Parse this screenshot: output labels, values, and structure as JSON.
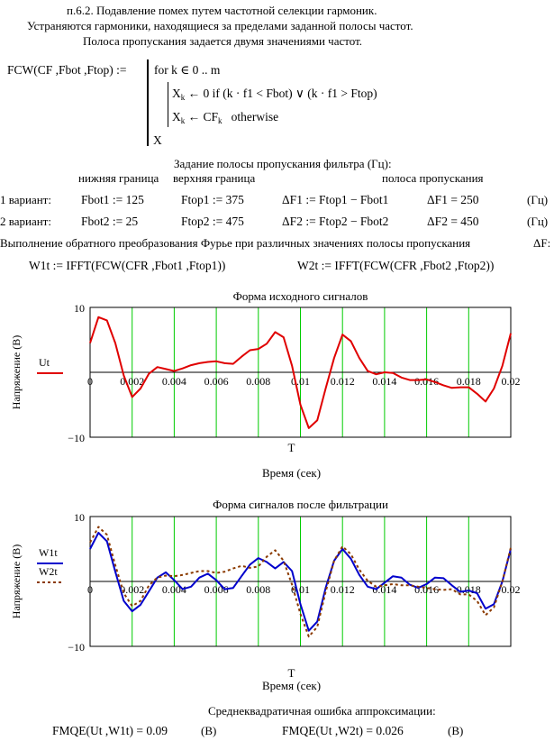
{
  "header": {
    "line1": "п.6.2. Подавление помех путем частотной селекции гармоник.",
    "line2": "Устраняются гармоники, находящиеся за пределами заданной полосы частот.",
    "line3": "Полоса пропускания задается двумя значениями частот."
  },
  "program": {
    "signature": "FCW(CF ,Fbot ,Ftop) :=",
    "for_line": "for  k ∈ 0 .. m",
    "line_a_lhs": "X",
    "line_a_rhs": "← 0   if  (k · f1 < Fbot) ∨ (k · f1 > Ftop)",
    "line_b_lhs": "X",
    "line_b_rhs": "← CF",
    "line_b_sub": "k",
    "line_b_tail": "otherwise",
    "ret": "X",
    "sub_k": "k"
  },
  "band": {
    "title": "Задание полосы пропускания фильтра (Гц):",
    "col_low": "нижняя граница",
    "col_high": "верхняя граница",
    "col_pass": "полоса пропускания",
    "rows": [
      {
        "variant": "1 вариант:",
        "low": "Fbot1 := 125",
        "high": "Ftop1 := 375",
        "def": "ΔF1 := Ftop1 − Fbot1",
        "val": "ΔF1 = 250",
        "unit": "(Гц)"
      },
      {
        "variant": "2 вариант:",
        "low": "Fbot2 := 25",
        "high": "Ftop2 := 475",
        "def": "ΔF2 := Ftop2 − Fbot2",
        "val": "ΔF2 = 450",
        "unit": "(Гц)"
      }
    ],
    "inverse_note": "Выполнение обратного преобразования Фурье при различных значениях полосы пропускания",
    "inverse_tail": "ΔF:",
    "w1": "W1t := IFFT(FCW(CFR ,Fbot1 ,Ftop1))",
    "w2": "W2t := IFFT(FCW(CFR ,Fbot2 ,Ftop2))"
  },
  "chart_data": [
    {
      "type": "line",
      "title": "Форма исходного сигналов",
      "xlabel": "T",
      "xlabel2": "Время (сек)",
      "ylabel": "Напряжение (В)",
      "xlim": [
        0,
        0.02
      ],
      "ylim": [
        -10,
        10
      ],
      "xticks": [
        "0",
        "0.002",
        "0.004",
        "0.006",
        "0.008",
        "0.01",
        "0.012",
        "0.014",
        "0.016",
        "0.018",
        "0.02"
      ],
      "ytick_top": "10",
      "ytick_bottom": "−10",
      "grid": true,
      "legend": "left",
      "colors": {
        "grid": "#00cc00",
        "series": "#e00000"
      },
      "series": [
        {
          "name": "Ut",
          "style": "solid",
          "color": "#e00000",
          "x": [
            0,
            0.0004,
            0.0008,
            0.0012,
            0.0016,
            0.002,
            0.0024,
            0.0028,
            0.0032,
            0.0036,
            0.004,
            0.0044,
            0.0048,
            0.0052,
            0.0056,
            0.006,
            0.0064,
            0.0068,
            0.0072,
            0.0076,
            0.008,
            0.0084,
            0.0088,
            0.0092,
            0.0096,
            0.01,
            0.0104,
            0.0108,
            0.0112,
            0.0116,
            0.012,
            0.0124,
            0.0128,
            0.0132,
            0.0136,
            0.014,
            0.0144,
            0.0148,
            0.0152,
            0.0156,
            0.016,
            0.0164,
            0.0168,
            0.0172,
            0.0176,
            0.018,
            0.0184,
            0.0188,
            0.0192,
            0.0196,
            0.02
          ],
          "y": [
            4.5,
            8.5,
            8.0,
            4.5,
            -0.5,
            -3.8,
            -2.5,
            -0.2,
            0.8,
            0.5,
            0.2,
            0.6,
            1.1,
            1.4,
            1.6,
            1.7,
            1.4,
            1.3,
            2.4,
            3.4,
            3.6,
            4.4,
            6.2,
            5.4,
            1.0,
            -5.0,
            -8.6,
            -7.4,
            -2.5,
            2.2,
            5.8,
            4.8,
            2.2,
            0.2,
            -0.3,
            0.0,
            -0.1,
            -0.8,
            -1.2,
            -1.2,
            -1.1,
            -1.5,
            -2.0,
            -2.4,
            -2.3,
            -2.3,
            -3.3,
            -4.5,
            -2.5,
            1.0,
            6.0
          ]
        }
      ]
    },
    {
      "type": "line",
      "title": "Форма сигналов после фильтрации",
      "xlabel": "T",
      "xlabel2": "Время (сек)",
      "ylabel": "Напряжение (В)",
      "xlim": [
        0,
        0.02
      ],
      "ylim": [
        -10,
        10
      ],
      "xticks": [
        "0",
        "0.002",
        "0.004",
        "0.006",
        "0.008",
        "0.01",
        "0.012",
        "0.014",
        "0.016",
        "0.018",
        "0.02"
      ],
      "ytick_top": "10",
      "ytick_bottom": "−10",
      "grid": true,
      "legend": "left",
      "colors": {
        "grid": "#00cc00",
        "w1": "#0000cc",
        "w2": "#8b3a00"
      },
      "series": [
        {
          "name": "W1t",
          "style": "solid",
          "color": "#0000cc",
          "x": [
            0,
            0.0004,
            0.0008,
            0.0012,
            0.0016,
            0.002,
            0.0024,
            0.0028,
            0.0032,
            0.0036,
            0.004,
            0.0044,
            0.0048,
            0.0052,
            0.0056,
            0.006,
            0.0064,
            0.0068,
            0.0072,
            0.0076,
            0.008,
            0.0084,
            0.0088,
            0.0092,
            0.0096,
            0.01,
            0.0104,
            0.0108,
            0.0112,
            0.0116,
            0.012,
            0.0124,
            0.0128,
            0.0132,
            0.0136,
            0.014,
            0.0144,
            0.0148,
            0.0152,
            0.0156,
            0.016,
            0.0164,
            0.0168,
            0.0172,
            0.0176,
            0.018,
            0.0184,
            0.0188,
            0.0192,
            0.0196,
            0.02
          ],
          "y": [
            5.0,
            7.5,
            6.2,
            1.5,
            -3.0,
            -4.6,
            -3.6,
            -1.5,
            0.6,
            1.4,
            0.2,
            -1.2,
            -0.8,
            0.6,
            1.2,
            0.2,
            -1.2,
            -1.0,
            0.8,
            2.6,
            3.6,
            3.0,
            2.0,
            3.0,
            1.6,
            -3.5,
            -7.6,
            -6.2,
            -1.0,
            3.2,
            5.0,
            3.5,
            1.0,
            -0.8,
            -1.2,
            -0.2,
            0.8,
            0.6,
            -0.5,
            -1.0,
            -0.4,
            0.6,
            0.5,
            -0.6,
            -1.6,
            -1.4,
            -1.8,
            -4.2,
            -3.5,
            0.0,
            5.0
          ]
        },
        {
          "name": "W2t",
          "style": "dashed",
          "color": "#8b3a00",
          "x": [
            0,
            0.0004,
            0.0008,
            0.0012,
            0.0016,
            0.002,
            0.0024,
            0.0028,
            0.0032,
            0.0036,
            0.004,
            0.0044,
            0.0048,
            0.0052,
            0.0056,
            0.006,
            0.0064,
            0.0068,
            0.0072,
            0.0076,
            0.008,
            0.0084,
            0.0088,
            0.0092,
            0.0096,
            0.01,
            0.0104,
            0.0108,
            0.0112,
            0.0116,
            0.012,
            0.0124,
            0.0128,
            0.0132,
            0.0136,
            0.014,
            0.0144,
            0.0148,
            0.0152,
            0.0156,
            0.016,
            0.0164,
            0.0168,
            0.0172,
            0.0176,
            0.018,
            0.0184,
            0.0188,
            0.0192,
            0.0196,
            0.02
          ],
          "y": [
            6.0,
            8.4,
            7.2,
            2.5,
            -1.8,
            -3.8,
            -3.0,
            -0.6,
            0.6,
            0.9,
            0.8,
            1.0,
            1.3,
            1.6,
            1.6,
            1.3,
            1.5,
            2.0,
            2.4,
            2.1,
            2.3,
            3.8,
            4.8,
            3.2,
            -0.5,
            -5.0,
            -8.5,
            -7.0,
            -1.6,
            3.2,
            5.4,
            4.2,
            1.8,
            0.1,
            -0.8,
            -0.6,
            -0.4,
            -0.6,
            -0.6,
            -0.8,
            -1.0,
            -1.2,
            -1.3,
            -1.2,
            -2.0,
            -2.0,
            -3.0,
            -5.2,
            -4.0,
            0.0,
            5.2
          ]
        }
      ]
    }
  ],
  "footer": {
    "title": "Среднеквадратичная ошибка аппроксимации:",
    "err1": "FMQE(Ut ,W1t) = 0.09",
    "unit1": "(В)",
    "err2": "FMQE(Ut ,W2t) = 0.026",
    "unit2": "(В)"
  }
}
